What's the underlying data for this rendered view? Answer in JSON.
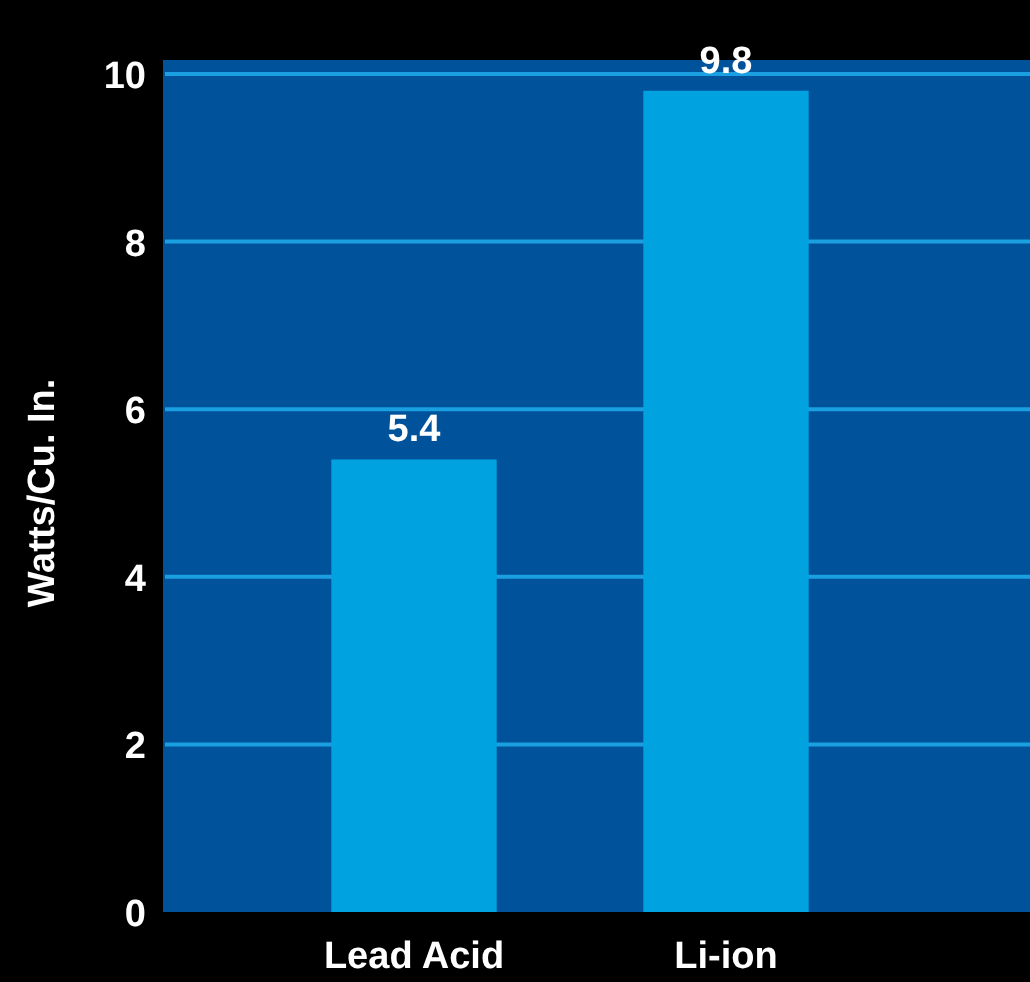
{
  "chart_data": {
    "type": "bar",
    "ylabel": "Watts/Cu. In.",
    "categories": [
      "Lead Acid",
      "Li-ion"
    ],
    "values": [
      5.4,
      9.8
    ],
    "color": "#00a3e0",
    "ylim": [
      0,
      10
    ],
    "yticks": [
      0,
      2,
      4,
      6,
      8,
      10
    ],
    "grid": "y",
    "data_labels": true
  }
}
